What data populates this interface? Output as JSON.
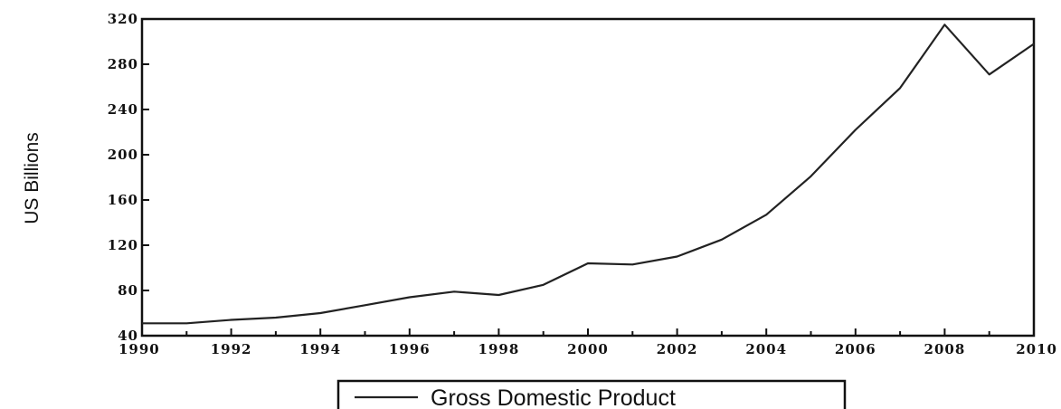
{
  "chart_data": {
    "type": "line",
    "ylabel": "US Billions",
    "xlabel": "",
    "xlim": [
      1990,
      2010
    ],
    "ylim": [
      40,
      320
    ],
    "x_ticks": [
      "1990",
      "1992",
      "1994",
      "1996",
      "1998",
      "2000",
      "2002",
      "2004",
      "2006",
      "2008",
      "2010"
    ],
    "y_ticks": [
      "40",
      "80",
      "120",
      "160",
      "200",
      "240",
      "280",
      "320"
    ],
    "legend_position": "bottom-center",
    "grid": false,
    "series": [
      {
        "name": "Gross Domestic Product",
        "color": "#222222",
        "x": [
          1990,
          1991,
          1992,
          1993,
          1994,
          1995,
          1996,
          1997,
          1998,
          1999,
          2000,
          2001,
          2002,
          2003,
          2004,
          2005,
          2006,
          2007,
          2008,
          2009,
          2010
        ],
        "values": [
          51,
          51,
          54,
          56,
          60,
          67,
          74,
          79,
          76,
          85,
          104,
          103,
          110,
          125,
          147,
          181,
          222,
          259,
          315,
          271,
          298
        ]
      }
    ]
  }
}
